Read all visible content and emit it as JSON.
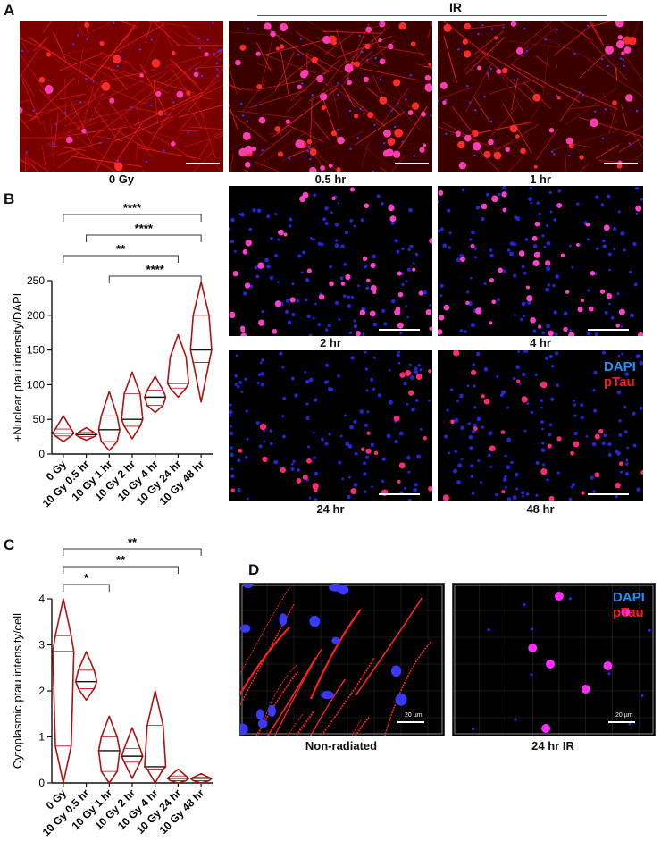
{
  "panel_labels": {
    "a": "A",
    "b": "B",
    "c": "C",
    "d": "D"
  },
  "ir_label": "IR",
  "images_a": [
    {
      "caption": "0 Gy",
      "style": "neurons-dense"
    },
    {
      "caption": "0.5 hr",
      "style": "neurons-mixed"
    },
    {
      "caption": "1 hr",
      "style": "neurons-sparse"
    }
  ],
  "images_b": [
    {
      "caption": "2 hr",
      "style": "nuclei"
    },
    {
      "caption": "4 hr",
      "style": "nuclei"
    },
    {
      "caption": "24 hr",
      "style": "nuclei-sparse"
    },
    {
      "caption": "48 hr",
      "style": "nuclei-sparse"
    }
  ],
  "legend": {
    "dapi": "DAPI",
    "ptau": "pTau",
    "dapi_color": "#1e90ff",
    "ptau_color": "#ff1a1a"
  },
  "images_d": [
    {
      "caption": "Non-radiated",
      "scale": "20 µm"
    },
    {
      "caption": "24 hr IR",
      "scale": "20 µm"
    }
  ],
  "chart_data": [
    {
      "panel": "B",
      "type": "violin",
      "ylabel": "+Nuclear ptau intensity/DAPI",
      "ylim": [
        0,
        250
      ],
      "yticks": [
        0,
        50,
        100,
        150,
        200,
        250
      ],
      "categories": [
        "0 Gy",
        "10 Gy 0.5 hr",
        "10 Gy 1 hr",
        "10 Gy 2 hr",
        "10 Gy 4 hr",
        "10 Gy 24 hr",
        "10 Gy 48 hr"
      ],
      "median": [
        30,
        28,
        35,
        50,
        82,
        102,
        150
      ],
      "q1": [
        26,
        25,
        18,
        40,
        70,
        95,
        132
      ],
      "q3": [
        36,
        31,
        55,
        87,
        92,
        140,
        200
      ],
      "min": [
        18,
        20,
        5,
        22,
        60,
        82,
        75
      ],
      "max": [
        55,
        38,
        90,
        118,
        112,
        172,
        248
      ],
      "significance": [
        {
          "from": 0,
          "to": 6,
          "label": "****"
        },
        {
          "from": 1,
          "to": 6,
          "label": "****"
        },
        {
          "from": 0,
          "to": 5,
          "label": "**"
        },
        {
          "from": 2,
          "to": 6,
          "label": "****"
        }
      ],
      "color": "#b01010"
    },
    {
      "panel": "C",
      "type": "violin",
      "ylabel": "Cytoplasmic ptau intensity/cell",
      "ylim": [
        0,
        4
      ],
      "yticks": [
        0,
        1,
        2,
        3,
        4
      ],
      "categories": [
        "0 Gy",
        "10 Gy 0.5 hr",
        "10 Gy 1 hr",
        "10 Gy 2 hr",
        "10 Gy 4 hr",
        "10 Gy 24 hr",
        "10 Gy 48 hr"
      ],
      "median": [
        2.85,
        2.2,
        0.7,
        0.58,
        0.35,
        0.1,
        0.1
      ],
      "q1": [
        0.8,
        2.05,
        0.25,
        0.45,
        0.3,
        0.05,
        0.05
      ],
      "q3": [
        3.2,
        2.45,
        1.0,
        0.75,
        1.25,
        0.15,
        0.12
      ],
      "min": [
        0,
        1.8,
        0,
        0.1,
        0,
        0,
        0
      ],
      "max": [
        4.0,
        2.85,
        1.45,
        1.2,
        2.0,
        0.3,
        0.2
      ],
      "significance": [
        {
          "from": 0,
          "to": 6,
          "label": "**"
        },
        {
          "from": 0,
          "to": 5,
          "label": "**"
        },
        {
          "from": 0,
          "to": 2,
          "label": "*"
        }
      ],
      "color": "#b01010"
    }
  ]
}
